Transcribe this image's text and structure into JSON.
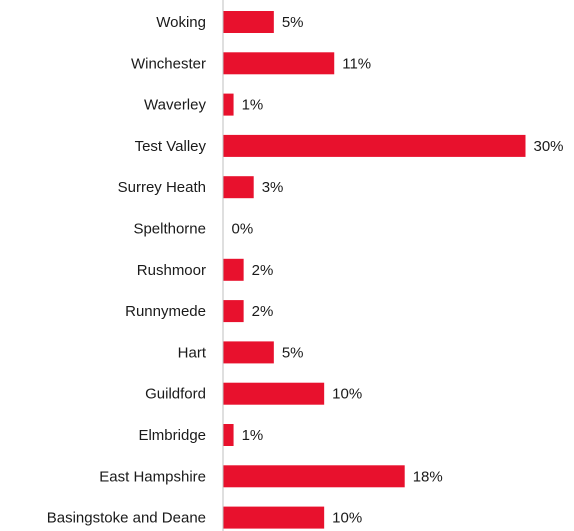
{
  "chart_data": {
    "type": "bar",
    "orientation": "horizontal",
    "categories": [
      "Woking",
      "Winchester",
      "Waverley",
      "Test Valley",
      "Surrey Heath",
      "Spelthorne",
      "Rushmoor",
      "Runnymede",
      "Hart",
      "Guildford",
      "Elmbridge",
      "East Hampshire",
      "Basingstoke and Deane"
    ],
    "values": [
      5,
      11,
      1,
      30,
      3,
      0,
      2,
      2,
      5,
      10,
      1,
      18,
      10
    ],
    "value_labels": [
      "5%",
      "11%",
      "1%",
      "30%",
      "3%",
      "0%",
      "2%",
      "2%",
      "5%",
      "10%",
      "1%",
      "18%",
      "10%"
    ],
    "bar_color": "#e8112d",
    "xlim": [
      0,
      30
    ],
    "grid": false,
    "legend": "none"
  }
}
